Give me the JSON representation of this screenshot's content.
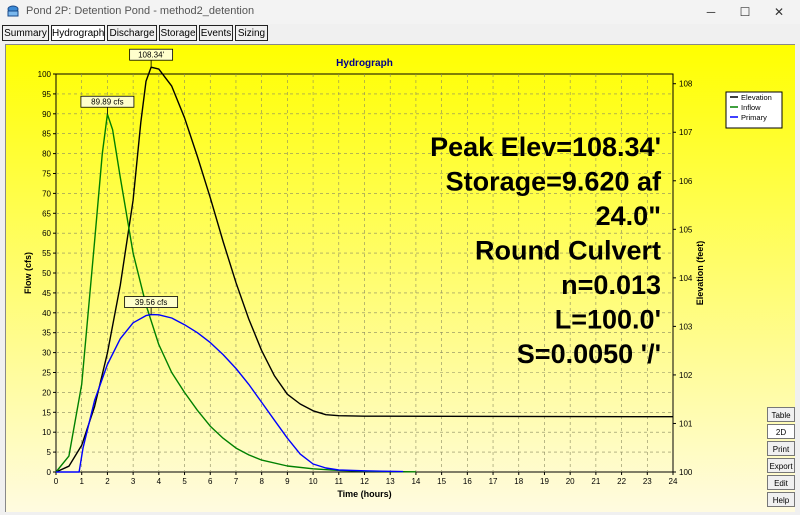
{
  "window": {
    "title": "Pond 2P: Detention Pond - method2_detention",
    "minimize_glyph": "─",
    "maximize_glyph": "☐",
    "close_glyph": "✕"
  },
  "tabs": [
    {
      "label": "Summary"
    },
    {
      "label": "Hydrograph"
    },
    {
      "label": "Discharge"
    },
    {
      "label": "Storage"
    },
    {
      "label": "Events"
    },
    {
      "label": "Sizing"
    }
  ],
  "side_buttons": [
    {
      "label": "Table"
    },
    {
      "label": "2D"
    },
    {
      "label": "Print"
    },
    {
      "label": "Export"
    },
    {
      "label": "Edit"
    },
    {
      "label": "Help"
    }
  ],
  "chart_data": {
    "type": "line",
    "title": "Hydrograph",
    "xlabel": "Time (hours)",
    "ylabel": "Flow (cfs)",
    "y2label": "Elevation (feet)",
    "xlim": [
      0,
      24
    ],
    "ylim": [
      0,
      100
    ],
    "y2lim": [
      100,
      108.2
    ],
    "x_ticks": [
      "0",
      "1",
      "2",
      "3",
      "4",
      "5",
      "6",
      "7",
      "8",
      "9",
      "10",
      "11",
      "12",
      "13",
      "14",
      "15",
      "16",
      "17",
      "18",
      "19",
      "20",
      "21",
      "22",
      "23",
      "24"
    ],
    "y_ticks": [
      "0",
      "5",
      "10",
      "15",
      "20",
      "25",
      "30",
      "35",
      "40",
      "45",
      "50",
      "55",
      "60",
      "65",
      "70",
      "75",
      "80",
      "85",
      "90",
      "95",
      "100"
    ],
    "y2_ticks": [
      "100",
      "101",
      "102",
      "103",
      "104",
      "105",
      "106",
      "107",
      "108"
    ],
    "grid": true,
    "legend_position": "top-right",
    "series": [
      {
        "name": "Elevation",
        "color": "#000000",
        "axis": "right",
        "points": [
          [
            0,
            100
          ],
          [
            0.5,
            100.12
          ],
          [
            1,
            100.55
          ],
          [
            1.5,
            101.35
          ],
          [
            2,
            102.45
          ],
          [
            2.5,
            103.85
          ],
          [
            3,
            105.6
          ],
          [
            3.3,
            107.2
          ],
          [
            3.5,
            108.05
          ],
          [
            3.7,
            108.34
          ],
          [
            4,
            108.3
          ],
          [
            4.5,
            107.95
          ],
          [
            5,
            107.3
          ],
          [
            5.5,
            106.5
          ],
          [
            6,
            105.65
          ],
          [
            6.5,
            104.75
          ],
          [
            7,
            103.9
          ],
          [
            7.5,
            103.15
          ],
          [
            8,
            102.5
          ],
          [
            8.5,
            101.98
          ],
          [
            9,
            101.6
          ],
          [
            9.5,
            101.4
          ],
          [
            10,
            101.26
          ],
          [
            10.5,
            101.18
          ],
          [
            11,
            101.16
          ],
          [
            12,
            101.15
          ],
          [
            24,
            101.14
          ]
        ]
      },
      {
        "name": "Inflow",
        "color": "#008000",
        "axis": "left",
        "points": [
          [
            0,
            0
          ],
          [
            0.5,
            4
          ],
          [
            1,
            22
          ],
          [
            1.5,
            58
          ],
          [
            1.8,
            80
          ],
          [
            2,
            89.89
          ],
          [
            2.2,
            86
          ],
          [
            2.5,
            74
          ],
          [
            3,
            55
          ],
          [
            3.5,
            42
          ],
          [
            4,
            32
          ],
          [
            4.5,
            25
          ],
          [
            5,
            20
          ],
          [
            5.5,
            15.5
          ],
          [
            6,
            11.5
          ],
          [
            6.5,
            8.5
          ],
          [
            7,
            6
          ],
          [
            7.5,
            4.3
          ],
          [
            8,
            3
          ],
          [
            9,
            1.5
          ],
          [
            10,
            0.8
          ],
          [
            11,
            0.4
          ],
          [
            12,
            0.2
          ],
          [
            13,
            0.1
          ],
          [
            14,
            0.05
          ]
        ]
      },
      {
        "name": "Primary",
        "color": "#0000ff",
        "axis": "left",
        "points": [
          [
            0,
            0
          ],
          [
            0.9,
            0
          ],
          [
            1.05,
            6
          ],
          [
            1.5,
            18
          ],
          [
            2,
            27
          ],
          [
            2.5,
            33.5
          ],
          [
            3,
            37.5
          ],
          [
            3.5,
            39.3
          ],
          [
            3.7,
            39.56
          ],
          [
            4,
            39.5
          ],
          [
            4.5,
            38.7
          ],
          [
            5,
            37
          ],
          [
            5.5,
            35
          ],
          [
            6,
            32.5
          ],
          [
            6.5,
            29.5
          ],
          [
            7,
            26
          ],
          [
            7.5,
            22
          ],
          [
            8,
            17.5
          ],
          [
            8.5,
            13
          ],
          [
            9,
            8.5
          ],
          [
            9.5,
            4.5
          ],
          [
            10,
            2
          ],
          [
            10.5,
            1
          ],
          [
            11,
            0.5
          ],
          [
            12,
            0.3
          ],
          [
            13.5,
            0.1
          ]
        ]
      }
    ],
    "annotations": [
      {
        "text": "108.34'",
        "x": 3.7,
        "value": 108.34,
        "axis": "right"
      },
      {
        "text": "89.89 cfs",
        "x": 2.0,
        "value": 89.89,
        "axis": "left"
      },
      {
        "text": "39.56 cfs",
        "x": 3.7,
        "value": 39.56,
        "axis": "left"
      }
    ],
    "info_lines": [
      "Peak Elev=108.34'",
      "Storage=9.620 af",
      "24.0\"",
      "Round Culvert",
      "n=0.013",
      "L=100.0'",
      "S=0.0050 '/'"
    ]
  }
}
